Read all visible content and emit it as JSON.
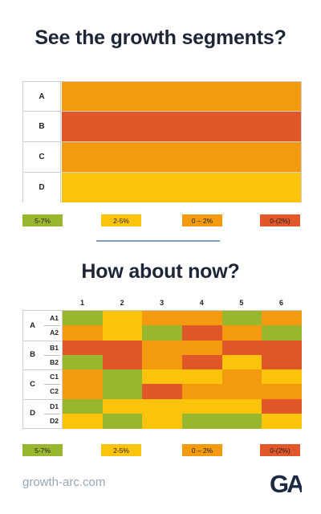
{
  "titles": {
    "top": "See the growth segments?",
    "bottom": "How about now?"
  },
  "top_table": {
    "rows": [
      {
        "label": "A",
        "color": "#f39a0e"
      },
      {
        "label": "B",
        "color": "#e2572a"
      },
      {
        "label": "C",
        "color": "#f39a0e"
      },
      {
        "label": "D",
        "color": "#fcc30c"
      }
    ]
  },
  "legend": [
    {
      "label": "5-7%",
      "color": "#99b62f"
    },
    {
      "label": "2-5%",
      "color": "#fcc30c"
    },
    {
      "label": "0 – 2%",
      "color": "#f39a0e"
    },
    {
      "label": "0-(2%)",
      "color": "#e2572a"
    }
  ],
  "heatmap": {
    "columns": [
      "1",
      "2",
      "3",
      "4",
      "5",
      "6"
    ],
    "groups": [
      {
        "label": "A",
        "rows": [
          "A1",
          "A2"
        ]
      },
      {
        "label": "B",
        "rows": [
          "B1",
          "B2"
        ]
      },
      {
        "label": "C",
        "rows": [
          "C1",
          "C2"
        ]
      },
      {
        "label": "D",
        "rows": [
          "D1",
          "D2"
        ]
      }
    ],
    "palette": {
      "g": "#99b62f",
      "y": "#fcc30c",
      "o": "#f39a0e",
      "r": "#e2572a"
    },
    "cells": [
      [
        "g",
        "y",
        "o",
        "o",
        "g",
        "o"
      ],
      [
        "o",
        "y",
        "g",
        "r",
        "o",
        "g"
      ],
      [
        "r",
        "r",
        "o",
        "o",
        "r",
        "r"
      ],
      [
        "g",
        "r",
        "o",
        "r",
        "y",
        "r"
      ],
      [
        "o",
        "g",
        "y",
        "y",
        "o",
        "y"
      ],
      [
        "o",
        "g",
        "r",
        "o",
        "o",
        "o"
      ],
      [
        "g",
        "y",
        "y",
        "y",
        "y",
        "r"
      ],
      [
        "y",
        "g",
        "y",
        "g",
        "g",
        "y"
      ]
    ]
  },
  "footer": {
    "url": "growth-arc.com",
    "logo_text": "GA"
  }
}
